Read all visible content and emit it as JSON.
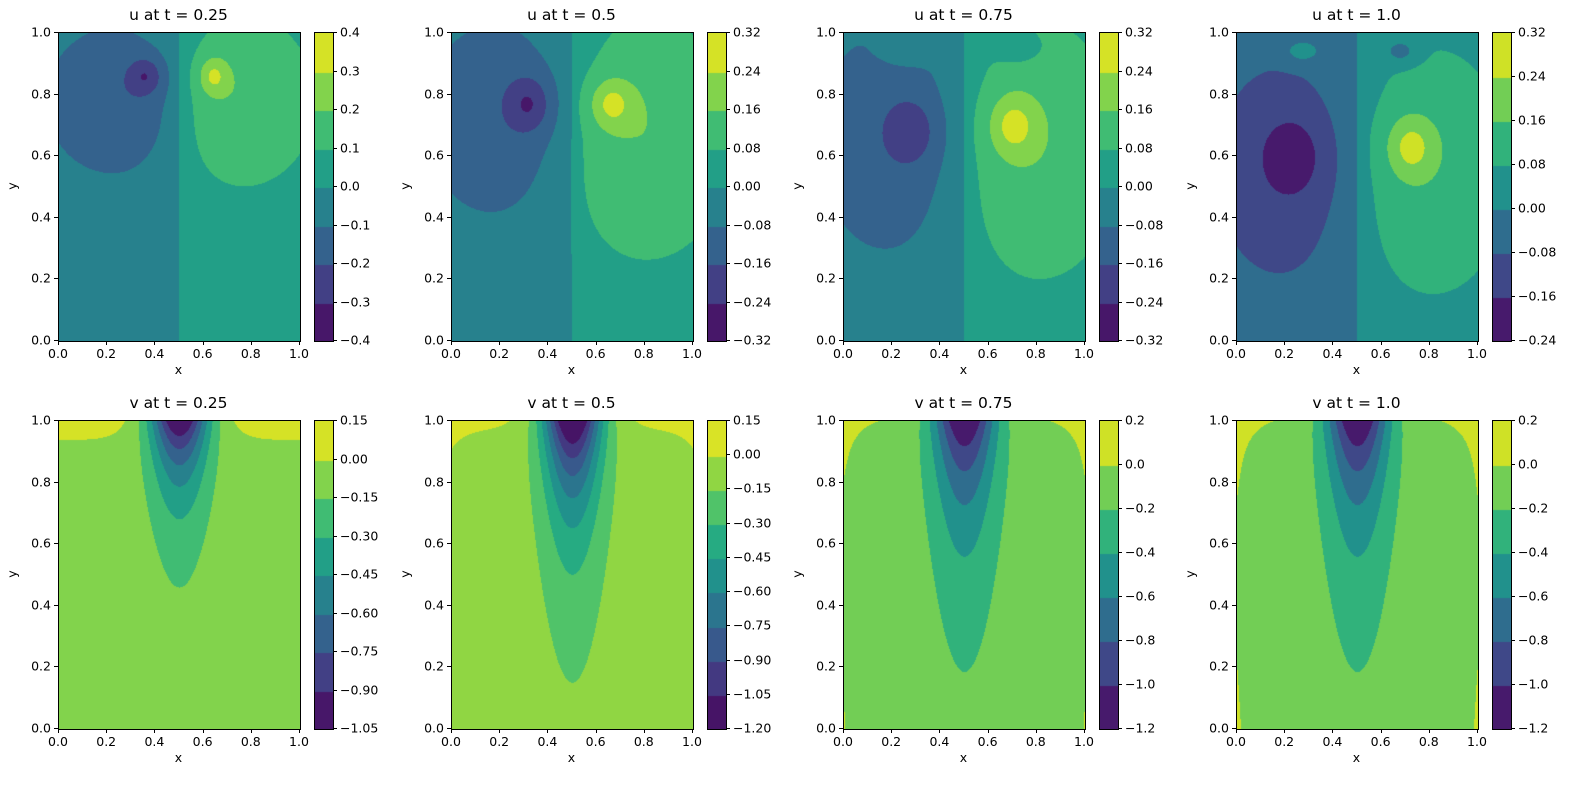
{
  "chart_data": [
    {
      "type": "heatmap",
      "subtype": "filled-contour",
      "title": "u at t = 0.25",
      "xlabel": "x",
      "ylabel": "y",
      "xlim": [
        0,
        1
      ],
      "ylim": [
        0,
        1
      ],
      "xticks": [
        "0.0",
        "0.2",
        "0.4",
        "0.6",
        "0.8",
        "1.0"
      ],
      "yticks": [
        "0.0",
        "0.2",
        "0.4",
        "0.6",
        "0.8",
        "1.0"
      ],
      "colormap": "viridis",
      "levels": [
        -0.4,
        -0.3,
        -0.2,
        -0.1,
        0.0,
        0.1,
        0.2,
        0.3,
        0.4
      ],
      "colorbar_ticks": [
        "−0.4",
        "−0.3",
        "−0.2",
        "−0.1",
        "0.0",
        "0.1",
        "0.2",
        "0.3",
        "0.4"
      ]
    },
    {
      "type": "heatmap",
      "subtype": "filled-contour",
      "title": "u at t = 0.5",
      "xlabel": "x",
      "ylabel": "y",
      "xlim": [
        0,
        1
      ],
      "ylim": [
        0,
        1
      ],
      "xticks": [
        "0.0",
        "0.2",
        "0.4",
        "0.6",
        "0.8",
        "1.0"
      ],
      "yticks": [
        "0.0",
        "0.2",
        "0.4",
        "0.6",
        "0.8",
        "1.0"
      ],
      "colormap": "viridis",
      "levels": [
        -0.32,
        -0.24,
        -0.16,
        -0.08,
        0.0,
        0.08,
        0.16,
        0.24,
        0.32
      ],
      "colorbar_ticks": [
        "−0.32",
        "−0.24",
        "−0.16",
        "−0.08",
        "0.00",
        "0.08",
        "0.16",
        "0.24",
        "0.32"
      ]
    },
    {
      "type": "heatmap",
      "subtype": "filled-contour",
      "title": "u at t = 0.75",
      "xlabel": "x",
      "ylabel": "y",
      "xlim": [
        0,
        1
      ],
      "ylim": [
        0,
        1
      ],
      "xticks": [
        "0.0",
        "0.2",
        "0.4",
        "0.6",
        "0.8",
        "1.0"
      ],
      "yticks": [
        "0.0",
        "0.2",
        "0.4",
        "0.6",
        "0.8",
        "1.0"
      ],
      "colormap": "viridis",
      "levels": [
        -0.32,
        -0.24,
        -0.16,
        -0.08,
        0.0,
        0.08,
        0.16,
        0.24,
        0.32
      ],
      "colorbar_ticks": [
        "−0.32",
        "−0.24",
        "−0.16",
        "−0.08",
        "0.00",
        "0.08",
        "0.16",
        "0.24",
        "0.32"
      ]
    },
    {
      "type": "heatmap",
      "subtype": "filled-contour",
      "title": "u at t = 1.0",
      "xlabel": "x",
      "ylabel": "y",
      "xlim": [
        0,
        1
      ],
      "ylim": [
        0,
        1
      ],
      "xticks": [
        "0.0",
        "0.2",
        "0.4",
        "0.6",
        "0.8",
        "1.0"
      ],
      "yticks": [
        "0.0",
        "0.2",
        "0.4",
        "0.6",
        "0.8",
        "1.0"
      ],
      "colormap": "viridis",
      "levels": [
        -0.24,
        -0.16,
        -0.08,
        0.0,
        0.08,
        0.16,
        0.24,
        0.32
      ],
      "colorbar_ticks": [
        "−0.24",
        "−0.16",
        "−0.08",
        "0.00",
        "0.08",
        "0.16",
        "0.24",
        "0.32"
      ]
    },
    {
      "type": "heatmap",
      "subtype": "filled-contour",
      "title": "v at t = 0.25",
      "xlabel": "x",
      "ylabel": "y",
      "xlim": [
        0,
        1
      ],
      "ylim": [
        0,
        1
      ],
      "xticks": [
        "0.0",
        "0.2",
        "0.4",
        "0.6",
        "0.8",
        "1.0"
      ],
      "yticks": [
        "0.0",
        "0.2",
        "0.4",
        "0.6",
        "0.8",
        "1.0"
      ],
      "colormap": "viridis",
      "levels": [
        -1.05,
        -0.9,
        -0.75,
        -0.6,
        -0.45,
        -0.3,
        -0.15,
        0.0,
        0.15
      ],
      "colorbar_ticks": [
        "−1.05",
        "−0.90",
        "−0.75",
        "−0.60",
        "−0.45",
        "−0.30",
        "−0.15",
        "0.00",
        "0.15"
      ]
    },
    {
      "type": "heatmap",
      "subtype": "filled-contour",
      "title": "v at t = 0.5",
      "xlabel": "x",
      "ylabel": "y",
      "xlim": [
        0,
        1
      ],
      "ylim": [
        0,
        1
      ],
      "xticks": [
        "0.0",
        "0.2",
        "0.4",
        "0.6",
        "0.8",
        "1.0"
      ],
      "yticks": [
        "0.0",
        "0.2",
        "0.4",
        "0.6",
        "0.8",
        "1.0"
      ],
      "colormap": "viridis",
      "levels": [
        -1.2,
        -1.05,
        -0.9,
        -0.75,
        -0.6,
        -0.45,
        -0.3,
        -0.15,
        0.0,
        0.15
      ],
      "colorbar_ticks": [
        "−1.20",
        "−1.05",
        "−0.90",
        "−0.75",
        "−0.60",
        "−0.45",
        "−0.30",
        "−0.15",
        "0.00",
        "0.15"
      ]
    },
    {
      "type": "heatmap",
      "subtype": "filled-contour",
      "title": "v at t = 0.75",
      "xlabel": "x",
      "ylabel": "y",
      "xlim": [
        0,
        1
      ],
      "ylim": [
        0,
        1
      ],
      "xticks": [
        "0.0",
        "0.2",
        "0.4",
        "0.6",
        "0.8",
        "1.0"
      ],
      "yticks": [
        "0.0",
        "0.2",
        "0.4",
        "0.6",
        "0.8",
        "1.0"
      ],
      "colormap": "viridis",
      "levels": [
        -1.2,
        -1.0,
        -0.8,
        -0.6,
        -0.4,
        -0.2,
        0.0,
        0.2
      ],
      "colorbar_ticks": [
        "−1.2",
        "−1.0",
        "−0.8",
        "−0.6",
        "−0.4",
        "−0.2",
        "0.0",
        "0.2"
      ]
    },
    {
      "type": "heatmap",
      "subtype": "filled-contour",
      "title": "v at t = 1.0",
      "xlabel": "x",
      "ylabel": "y",
      "xlim": [
        0,
        1
      ],
      "ylim": [
        0,
        1
      ],
      "xticks": [
        "0.0",
        "0.2",
        "0.4",
        "0.6",
        "0.8",
        "1.0"
      ],
      "yticks": [
        "0.0",
        "0.2",
        "0.4",
        "0.6",
        "0.8",
        "1.0"
      ],
      "colormap": "viridis",
      "levels": [
        -1.2,
        -1.0,
        -0.8,
        -0.6,
        -0.4,
        -0.2,
        0.0,
        0.2
      ],
      "colorbar_ticks": [
        "−1.2",
        "−1.0",
        "−0.8",
        "−0.6",
        "−0.4",
        "−0.2",
        "0.0",
        "0.2"
      ]
    }
  ]
}
